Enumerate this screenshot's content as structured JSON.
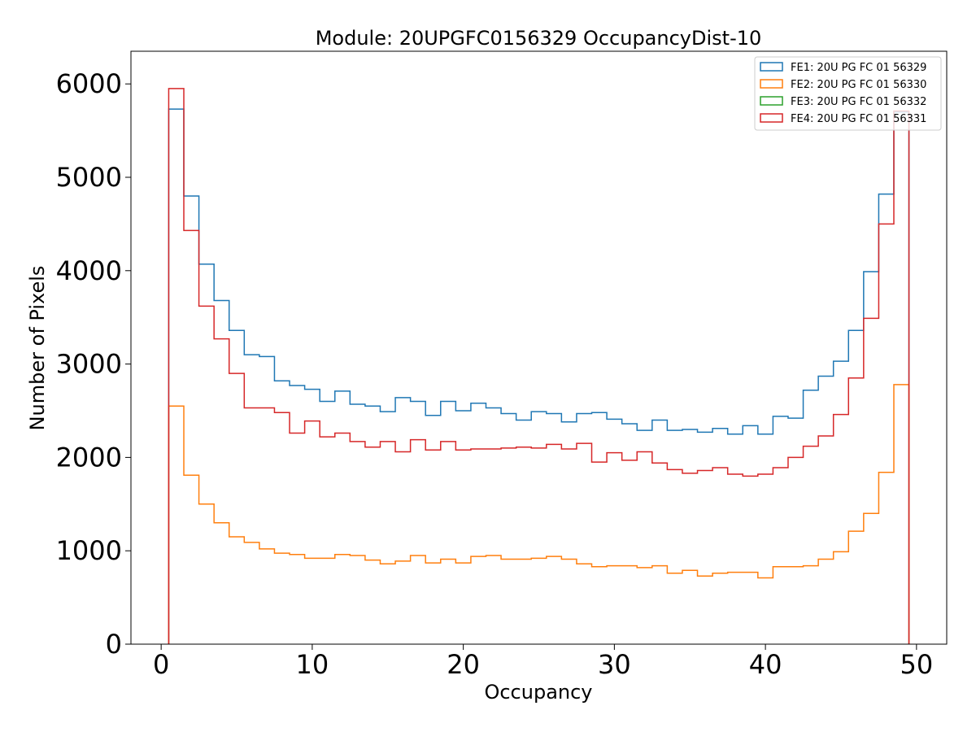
{
  "chart_data": {
    "type": "histogram-step",
    "title": "Module: 20UPGFC0156329 OccupancyDist-10",
    "xlabel": "Occupancy",
    "ylabel": "Number of Pixels",
    "xlim": [
      -2,
      52
    ],
    "ylim": [
      0,
      6350
    ],
    "xticks": [
      0,
      10,
      20,
      30,
      40,
      50
    ],
    "yticks": [
      0,
      1000,
      2000,
      3000,
      4000,
      5000,
      6000
    ],
    "bin_edges_start": 0.5,
    "bin_width": 1,
    "legend_location": "top-right",
    "series": [
      {
        "name": "FE1: 20U PG FC 01 56329",
        "color": "#1f77b4",
        "values": [
          5730,
          4800,
          4070,
          3680,
          3360,
          3100,
          3080,
          2820,
          2770,
          2730,
          2600,
          2710,
          2570,
          2550,
          2490,
          2640,
          2600,
          2450,
          2600,
          2500,
          2580,
          2530,
          2470,
          2400,
          2490,
          2470,
          2380,
          2470,
          2480,
          2410,
          2360,
          2290,
          2400,
          2290,
          2300,
          2270,
          2310,
          2250,
          2340,
          2250,
          2440,
          2420,
          2720,
          2870,
          3030,
          3360,
          3990,
          4820,
          5700
        ]
      },
      {
        "name": "FE2: 20U PG FC 01 56330",
        "color": "#ff7f0e",
        "values": [
          2550,
          1810,
          1500,
          1300,
          1150,
          1090,
          1020,
          975,
          960,
          920,
          920,
          960,
          950,
          900,
          860,
          890,
          950,
          870,
          910,
          870,
          940,
          950,
          910,
          910,
          920,
          940,
          910,
          860,
          830,
          840,
          840,
          820,
          840,
          760,
          790,
          730,
          760,
          770,
          770,
          710,
          830,
          830,
          840,
          910,
          990,
          1210,
          1400,
          1840,
          2780
        ]
      },
      {
        "name": "FE3: 20U PG FC 01 56332",
        "color": "#2ca02c",
        "values": []
      },
      {
        "name": "FE4: 20U PG FC 01 56331",
        "color": "#d62728",
        "values": [
          5950,
          4430,
          3620,
          3270,
          2900,
          2530,
          2530,
          2480,
          2260,
          2390,
          2220,
          2260,
          2170,
          2110,
          2170,
          2060,
          2190,
          2080,
          2170,
          2080,
          2090,
          2090,
          2100,
          2110,
          2100,
          2140,
          2090,
          2150,
          1950,
          2050,
          1970,
          2060,
          1940,
          1870,
          1830,
          1860,
          1890,
          1820,
          1800,
          1820,
          1890,
          2000,
          2120,
          2230,
          2460,
          2850,
          3490,
          4500,
          5710
        ]
      }
    ]
  }
}
